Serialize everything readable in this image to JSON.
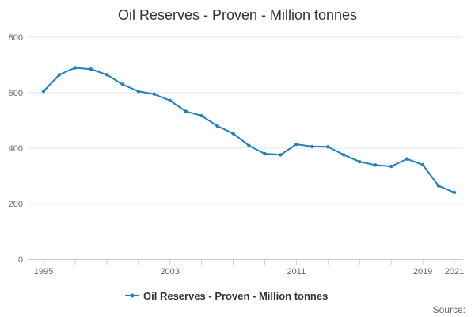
{
  "chart_data": {
    "type": "line",
    "title": "Oil Reserves - Proven - Million tonnes",
    "xlabel": "",
    "ylabel": "",
    "x": [
      1995,
      1996,
      1997,
      1998,
      1999,
      2000,
      2001,
      2002,
      2003,
      2004,
      2005,
      2006,
      2007,
      2008,
      2009,
      2010,
      2011,
      2012,
      2013,
      2014,
      2015,
      2016,
      2017,
      2018,
      2019,
      2020,
      2021
    ],
    "xlim": [
      1995,
      2021
    ],
    "x_tick_labels": [
      "1995",
      "2003",
      "2011",
      "2019",
      "2021"
    ],
    "ylim": [
      0,
      800
    ],
    "y_ticks": [
      0,
      200,
      400,
      600,
      800
    ],
    "y_tick_labels": [
      "0",
      "200",
      "400",
      "600",
      "800"
    ],
    "series": [
      {
        "name": "Oil Reserves - Proven - Million tonnes",
        "color": "#1f7fbf",
        "values": [
          605,
          665,
          690,
          685,
          665,
          630,
          605,
          595,
          572,
          533,
          517,
          480,
          453,
          409,
          380,
          376,
          414,
          406,
          405,
          376,
          351,
          339,
          334,
          361,
          340,
          264,
          240
        ]
      }
    ],
    "grid": "horizontal",
    "legend_position": "bottom",
    "source_label": "Source:"
  }
}
